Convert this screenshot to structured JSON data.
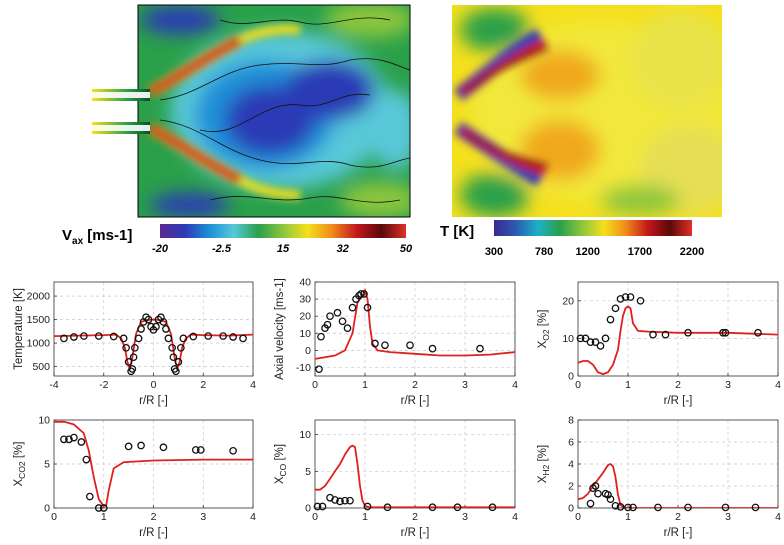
{
  "colorbars": [
    {
      "label_main": "V",
      "label_sub": "ax",
      "label_unit": " [ms-1]",
      "min": -20,
      "max": 50,
      "ticks": [
        "-20",
        "-2.5",
        "15",
        "32",
        "50"
      ],
      "tick_values": [
        -20,
        -2.5,
        15,
        32,
        50
      ],
      "colors": [
        "#5a2a8e",
        "#2c3ab5",
        "#1d8fd8",
        "#58c8d8",
        "#2aa04a",
        "#8cc63e",
        "#f4e01c",
        "#f08a1a",
        "#c4161c",
        "#5a0a0a",
        "#e0302a"
      ]
    },
    {
      "label_main": "T [K]",
      "label_sub": "",
      "label_unit": "",
      "min": 300,
      "max": 2200,
      "ticks": [
        "300",
        "780",
        "1200",
        "1700",
        "2200"
      ],
      "tick_values": [
        300,
        780,
        1200,
        1700,
        2200
      ],
      "colors": [
        "#3a2a8e",
        "#2c5ab5",
        "#1db0c8",
        "#2aa04a",
        "#8cc63e",
        "#f4e01c",
        "#f08a1a",
        "#c4161c",
        "#5a0a0a",
        "#e0302a"
      ]
    }
  ],
  "fields": [
    {
      "name": "axial-velocity-field",
      "colors": [
        "#2c3ab5",
        "#1d8fd8",
        "#58c8d8",
        "#2aa04a",
        "#8cc63e",
        "#f4e01c",
        "#f08a1a",
        "#c4161c"
      ]
    },
    {
      "name": "temperature-field",
      "colors": [
        "#2c3ab5",
        "#1db0c8",
        "#2aa04a",
        "#8cc63e",
        "#f4e01c",
        "#f08a1a",
        "#c4161c",
        "#5a0a0a"
      ]
    }
  ],
  "chart_data": [
    {
      "type": "line",
      "xlabel": "",
      "ylabel": "Temperature [K]",
      "xlim": [
        -4,
        4
      ],
      "ylim": [
        300,
        2300
      ],
      "xticks": [
        -4,
        -2,
        0,
        2,
        4
      ],
      "yticks": [
        500,
        1000,
        1500,
        2000
      ],
      "xticklabels": [
        "-4",
        "-2",
        "0",
        "2",
        "4"
      ],
      "yticklabels": [
        "500",
        "1000",
        "1500",
        "2000"
      ],
      "line": {
        "x": [
          -4,
          -3,
          -2,
          -1.5,
          -1.3,
          -1.15,
          -1.05,
          -0.95,
          -0.85,
          -0.7,
          -0.5,
          -0.3,
          -0.1,
          0.1,
          0.3,
          0.5,
          0.7,
          0.85,
          0.95,
          1.05,
          1.15,
          1.3,
          1.5,
          2,
          3,
          4
        ],
        "y": [
          1150,
          1160,
          1170,
          1180,
          1100,
          900,
          600,
          450,
          700,
          1200,
          1450,
          1480,
          1500,
          1500,
          1480,
          1450,
          1200,
          700,
          450,
          600,
          900,
          1100,
          1180,
          1170,
          1160,
          1180
        ]
      },
      "points": {
        "x": [
          -3.6,
          -3.2,
          -2.8,
          -2.2,
          -1.6,
          -1.2,
          -1.1,
          -1.0,
          -0.9,
          -0.85,
          -0.8,
          -0.75,
          -0.6,
          -0.5,
          -0.4,
          -0.3,
          -0.2,
          -0.1,
          0,
          0.1,
          0.2,
          0.3,
          0.4,
          0.5,
          0.6,
          0.75,
          0.8,
          0.85,
          0.9,
          1.0,
          1.1,
          1.2,
          1.6,
          2.2,
          2.8,
          3.2,
          3.6
        ],
        "y": [
          1100,
          1130,
          1150,
          1150,
          1140,
          1100,
          900,
          600,
          400,
          450,
          700,
          900,
          1100,
          1300,
          1450,
          1550,
          1500,
          1350,
          1280,
          1350,
          1500,
          1550,
          1450,
          1300,
          1100,
          900,
          700,
          450,
          400,
          600,
          900,
          1100,
          1140,
          1150,
          1150,
          1130,
          1100
        ]
      }
    },
    {
      "type": "line",
      "xlabel": "",
      "ylabel": "Axial velocity [ms-1]",
      "xlim": [
        0,
        4
      ],
      "ylim": [
        -15,
        40
      ],
      "xticks": [
        0,
        1,
        2,
        3,
        4
      ],
      "yticks": [
        -10,
        0,
        10,
        20,
        30,
        40
      ],
      "xticklabels": [
        "0",
        "1",
        "2",
        "3",
        "4"
      ],
      "yticklabels": [
        "-10",
        "0",
        "10",
        "20",
        "30",
        "40"
      ],
      "line": {
        "x": [
          0,
          0.2,
          0.4,
          0.6,
          0.75,
          0.85,
          0.95,
          1.0,
          1.05,
          1.1,
          1.15,
          1.25,
          1.5,
          2,
          2.5,
          3,
          3.5,
          4
        ],
        "y": [
          -5,
          -4,
          -3,
          0,
          10,
          28,
          32,
          35,
          30,
          14,
          4,
          0,
          -1,
          -2,
          -3,
          -3,
          -2.5,
          -1
        ]
      },
      "points": {
        "x": [
          0.08,
          0.12,
          0.2,
          0.25,
          0.3,
          0.45,
          0.55,
          0.65,
          0.75,
          0.82,
          0.88,
          0.92,
          0.98,
          1.05,
          1.2,
          1.4,
          1.9,
          2.35,
          3.3
        ],
        "y": [
          -11,
          8,
          13,
          15,
          20,
          22,
          17,
          13,
          25,
          30,
          32,
          33,
          33,
          25,
          4,
          3,
          3,
          1,
          1
        ]
      }
    },
    {
      "type": "line",
      "xlabel": "",
      "ylabel_main": "X",
      "ylabel_sub": "O2",
      "ylabel_unit": " [%]",
      "xlim": [
        0,
        4
      ],
      "ylim": [
        0,
        25
      ],
      "xticks": [
        0,
        1,
        2,
        3,
        4
      ],
      "yticks": [
        0,
        10,
        20
      ],
      "xticklabels": [
        "0",
        "1",
        "2",
        "3",
        "4"
      ],
      "yticklabels": [
        "0",
        "10",
        "20"
      ],
      "line": {
        "x": [
          0,
          0.1,
          0.2,
          0.3,
          0.4,
          0.5,
          0.6,
          0.7,
          0.8,
          0.85,
          0.9,
          0.95,
          1.0,
          1.05,
          1.1,
          1.2,
          1.4,
          2,
          3,
          4
        ],
        "y": [
          3.5,
          4,
          4,
          3,
          1,
          0.5,
          1,
          3,
          7,
          12,
          16,
          18,
          18.5,
          18,
          14,
          12,
          11.8,
          11.5,
          11.5,
          11
        ]
      },
      "points": {
        "x": [
          0.05,
          0.15,
          0.25,
          0.35,
          0.45,
          0.55,
          0.65,
          0.75,
          0.85,
          0.95,
          1.05,
          1.25,
          1.5,
          1.75,
          2.2,
          2.9,
          2.95,
          3.6
        ],
        "y": [
          10,
          10,
          9,
          9,
          8,
          10,
          15,
          18,
          20.5,
          21,
          21,
          20,
          11,
          11,
          11.5,
          11.5,
          11.5,
          11.5
        ]
      }
    },
    {
      "type": "line",
      "xlabel": "r/R [-]",
      "ylabel_main": "X",
      "ylabel_sub": "CO2",
      "ylabel_unit": " [%]",
      "xlim": [
        0,
        4
      ],
      "ylim": [
        0,
        10
      ],
      "xticks": [
        0,
        1,
        2,
        3,
        4
      ],
      "yticks": [
        0,
        5,
        10
      ],
      "xticklabels": [
        "0",
        "1",
        "2",
        "3",
        "4"
      ],
      "yticklabels": [
        "0",
        "5",
        "10"
      ],
      "line": {
        "x": [
          0,
          0.2,
          0.4,
          0.6,
          0.7,
          0.8,
          0.9,
          1.0,
          1.05,
          1.1,
          1.2,
          1.4,
          2,
          3,
          4
        ],
        "y": [
          9.8,
          9.8,
          9.5,
          8.5,
          6.5,
          3.5,
          1,
          0.2,
          0.3,
          2,
          4.5,
          5.2,
          5.4,
          5.5,
          5.5
        ]
      },
      "points": {
        "x": [
          0.2,
          0.3,
          0.4,
          0.55,
          0.65,
          0.72,
          0.9,
          1.0,
          1.5,
          1.75,
          2.2,
          2.85,
          2.95,
          3.6
        ],
        "y": [
          7.8,
          7.8,
          8,
          7.5,
          5.5,
          1.3,
          0,
          0,
          7,
          7.1,
          6.9,
          6.6,
          6.6,
          6.5
        ]
      }
    },
    {
      "type": "line",
      "xlabel": "r/R [-]",
      "ylabel_main": "X",
      "ylabel_sub": "CO",
      "ylabel_unit": " [%]",
      "xlim": [
        0,
        4
      ],
      "ylim": [
        0,
        12
      ],
      "xticks": [
        0,
        1,
        2,
        3,
        4
      ],
      "yticks": [
        0,
        5,
        10
      ],
      "xticklabels": [
        "0",
        "1",
        "2",
        "3",
        "4"
      ],
      "yticklabels": [
        "0",
        "5",
        "10"
      ],
      "line": {
        "x": [
          0,
          0.1,
          0.2,
          0.3,
          0.4,
          0.5,
          0.6,
          0.7,
          0.75,
          0.8,
          0.85,
          0.9,
          0.95,
          1.0,
          1.1,
          1.5,
          2,
          3,
          4
        ],
        "y": [
          2.5,
          2.5,
          3,
          4,
          5,
          6,
          7.3,
          8.3,
          8.5,
          8.3,
          6,
          3,
          1,
          0.3,
          0.1,
          0.1,
          0.1,
          0.1,
          0.1
        ]
      },
      "points": {
        "x": [
          0.05,
          0.15,
          0.3,
          0.4,
          0.5,
          0.6,
          0.7,
          1.05,
          1.45,
          2.35,
          2.85,
          3.55
        ],
        "y": [
          0.2,
          0.2,
          1.4,
          1.1,
          0.9,
          1.0,
          1.0,
          0.2,
          0.1,
          0.1,
          0.1,
          0.1
        ]
      }
    },
    {
      "type": "line",
      "xlabel": "r/R [-]",
      "ylabel_main": "X",
      "ylabel_sub": "H2",
      "ylabel_unit": " [%]",
      "xlim": [
        0,
        4
      ],
      "ylim": [
        0,
        8
      ],
      "xticks": [
        0,
        1,
        2,
        3,
        4
      ],
      "yticks": [
        0,
        2,
        4,
        6,
        8
      ],
      "xticklabels": [
        "0",
        "1",
        "2",
        "3",
        "4"
      ],
      "yticklabels": [
        "0",
        "2",
        "4",
        "6",
        "8"
      ],
      "line": {
        "x": [
          0,
          0.1,
          0.2,
          0.3,
          0.4,
          0.5,
          0.6,
          0.65,
          0.7,
          0.75,
          0.8,
          0.85,
          0.9,
          1.0,
          1.5,
          2,
          3,
          4
        ],
        "y": [
          0.8,
          0.9,
          1.3,
          2,
          2.6,
          3.2,
          3.9,
          4.0,
          3.8,
          2.8,
          1.2,
          0.3,
          0.05,
          0,
          0,
          0,
          0,
          0
        ]
      },
      "points": {
        "x": [
          0.25,
          0.3,
          0.35,
          0.4,
          0.55,
          0.6,
          0.65,
          0.75,
          0.85,
          1.0,
          1.1,
          1.6,
          2.2,
          2.95,
          3.55
        ],
        "y": [
          0.4,
          1.8,
          2.0,
          1.3,
          1.3,
          1.2,
          0.8,
          0.2,
          0.1,
          0.05,
          0.05,
          0.05,
          0.05,
          0.05,
          0.05
        ]
      }
    }
  ]
}
